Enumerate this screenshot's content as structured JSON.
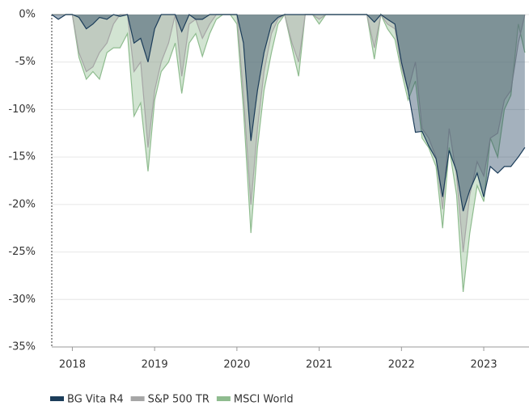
{
  "chart_data": {
    "type": "area",
    "x": [
      2017.75,
      2017.83,
      2017.92,
      2018,
      2018.08,
      2018.17,
      2018.25,
      2018.33,
      2018.42,
      2018.5,
      2018.58,
      2018.67,
      2018.75,
      2018.83,
      2018.92,
      2019,
      2019.08,
      2019.17,
      2019.25,
      2019.33,
      2019.42,
      2019.5,
      2019.58,
      2019.67,
      2019.75,
      2019.83,
      2019.92,
      2020,
      2020.08,
      2020.17,
      2020.25,
      2020.33,
      2020.42,
      2020.5,
      2020.58,
      2020.67,
      2020.75,
      2020.83,
      2020.92,
      2021,
      2021.08,
      2021.17,
      2021.25,
      2021.33,
      2021.42,
      2021.5,
      2021.58,
      2021.67,
      2021.75,
      2021.83,
      2021.92,
      2022,
      2022.08,
      2022.17,
      2022.25,
      2022.33,
      2022.42,
      2022.5,
      2022.58,
      2022.67,
      2022.75,
      2022.83,
      2022.92,
      2023,
      2023.08,
      2023.17,
      2023.25,
      2023.33,
      2023.42,
      2023.5
    ],
    "series": [
      {
        "name": "MSCI World",
        "color": "#8fbc8f",
        "values": [
          0,
          0,
          0,
          0,
          -4.5,
          -6.8,
          -6,
          -6.8,
          -4,
          -3.5,
          -3.5,
          -2,
          -10.7,
          -9.3,
          -16.5,
          -9,
          -6,
          -5,
          -3,
          -8.3,
          -3,
          -2,
          -4.4,
          -2,
          -0.5,
          0,
          0,
          -1,
          -10,
          -23,
          -14,
          -8,
          -4,
          -1,
          0,
          -3.5,
          -6.5,
          0,
          0,
          -1,
          0,
          0,
          0,
          0,
          0,
          0,
          0,
          -4.7,
          0,
          -1.5,
          -2.6,
          -6,
          -9,
          -7,
          -13,
          -14,
          -16,
          -22.5,
          -14,
          -19,
          -29.2,
          -23,
          -18,
          -19.7,
          -13,
          -15,
          -10,
          -8.5,
          -1,
          -4
        ]
      },
      {
        "name": "S&P 500 TR",
        "color": "#a6a6a6",
        "values": [
          0,
          0,
          0,
          0,
          -4,
          -6,
          -5.5,
          -4,
          -3,
          -1,
          0,
          0,
          -6,
          -5,
          -14,
          -8,
          -5,
          -3,
          0,
          -6.5,
          -1,
          -0.5,
          -2.5,
          -1,
          0,
          0,
          0,
          0,
          -8.5,
          -20,
          -12,
          -6,
          -2,
          -0.5,
          0,
          -3,
          -5,
          0,
          0,
          -0.5,
          0,
          0,
          0,
          0,
          0,
          0,
          0,
          -3.5,
          0,
          -1,
          -1.5,
          -5.5,
          -8,
          -5,
          -12,
          -13,
          -15,
          -20.5,
          -12,
          -17,
          -25,
          -19,
          -15.5,
          -17,
          -13,
          -12.5,
          -9,
          -8,
          -3,
          0
        ]
      },
      {
        "name": "BG Vita R4",
        "color": "#1c3d5a",
        "values": [
          0,
          -0.5,
          0,
          0,
          -0.3,
          -1.5,
          -1,
          -0.3,
          -0.5,
          0,
          -0.2,
          0,
          -3,
          -2.5,
          -5,
          -1.5,
          0,
          0,
          0,
          -1.8,
          0,
          -0.5,
          -0.5,
          0,
          0,
          0,
          0,
          0,
          -3,
          -13.3,
          -8,
          -4,
          -1,
          -0.3,
          0,
          0,
          0,
          0,
          0,
          0,
          0,
          0,
          0,
          0,
          0,
          0,
          0,
          -0.8,
          0,
          -0.5,
          -1,
          -5,
          -8,
          -12.4,
          -12.3,
          -13.8,
          -15.2,
          -19.2,
          -14.3,
          -16.5,
          -20.7,
          -18.5,
          -16.7,
          -19.2,
          -16,
          -16.7,
          -16,
          -16,
          -15,
          -14
        ]
      }
    ],
    "legend_order": [
      "BG Vita R4",
      "S&P 500 TR",
      "MSCI World"
    ],
    "xlim": [
      2017.75,
      2023.55
    ],
    "xticks": [
      2018,
      2019,
      2020,
      2021,
      2022,
      2023
    ],
    "ylim": [
      -35,
      0
    ],
    "yticks": [
      {
        "value": 0,
        "label": "0%"
      },
      {
        "value": -5,
        "label": "-5%"
      },
      {
        "value": -10,
        "label": "-10%"
      },
      {
        "value": -15,
        "label": "-15%"
      },
      {
        "value": -20,
        "label": "-20%"
      },
      {
        "value": -25,
        "label": "-25%"
      },
      {
        "value": -30,
        "label": "-30%"
      },
      {
        "value": -35,
        "label": "-35%"
      }
    ],
    "grid": true,
    "legend": "bottom"
  }
}
